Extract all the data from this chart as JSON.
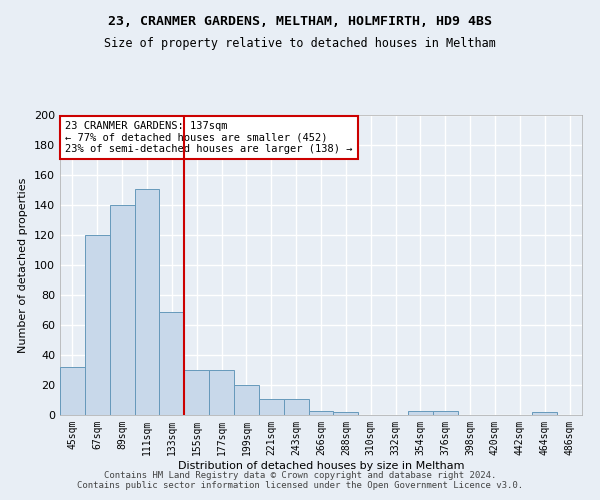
{
  "title1": "23, CRANMER GARDENS, MELTHAM, HOLMFIRTH, HD9 4BS",
  "title2": "Size of property relative to detached houses in Meltham",
  "xlabel": "Distribution of detached houses by size in Meltham",
  "ylabel": "Number of detached properties",
  "categories": [
    "45sqm",
    "67sqm",
    "89sqm",
    "111sqm",
    "133sqm",
    "155sqm",
    "177sqm",
    "199sqm",
    "221sqm",
    "243sqm",
    "266sqm",
    "288sqm",
    "310sqm",
    "332sqm",
    "354sqm",
    "376sqm",
    "398sqm",
    "420sqm",
    "442sqm",
    "464sqm",
    "486sqm"
  ],
  "values": [
    32,
    120,
    140,
    151,
    69,
    30,
    30,
    20,
    11,
    11,
    3,
    2,
    0,
    0,
    3,
    3,
    0,
    0,
    0,
    2,
    0
  ],
  "bar_color": "#c8d8ea",
  "bar_edge_color": "#6699bb",
  "vline_x": 4.5,
  "vline_color": "#cc0000",
  "annotation_line1": "23 CRANMER GARDENS: 137sqm",
  "annotation_line2": "← 77% of detached houses are smaller (452)",
  "annotation_line3": "23% of semi-detached houses are larger (138) →",
  "annotation_box_color": "white",
  "annotation_box_edge": "#cc0000",
  "ylim": [
    0,
    200
  ],
  "yticks": [
    0,
    20,
    40,
    60,
    80,
    100,
    120,
    140,
    160,
    180,
    200
  ],
  "footer": "Contains HM Land Registry data © Crown copyright and database right 2024.\nContains public sector information licensed under the Open Government Licence v3.0.",
  "bg_color": "#e8eef5",
  "grid_color": "#ffffff",
  "title1_fontsize": 9.5,
  "title2_fontsize": 8.5,
  "ylabel_fontsize": 8,
  "xlabel_fontsize": 8,
  "tick_fontsize": 7,
  "annotation_fontsize": 7.5,
  "footer_fontsize": 6.5
}
